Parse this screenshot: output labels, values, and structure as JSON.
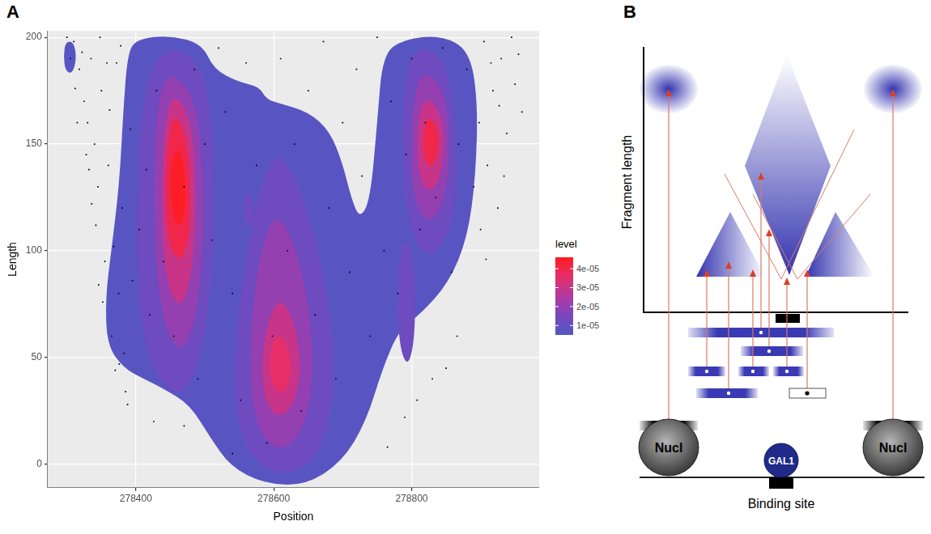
{
  "chart_data": {
    "type": "scatter",
    "panel": "A",
    "x_label": "Position",
    "y_label": "Length",
    "xlim": [
      278272,
      278985
    ],
    "xticks": [
      278400,
      278600,
      278800
    ],
    "ylim": [
      -11,
      203
    ],
    "yticks": [
      0,
      50,
      100,
      150,
      200
    ],
    "grid": true,
    "legend": "right",
    "series": [
      {
        "color": "#000000",
        "marker": "point",
        "x": [
          278310,
          278318,
          278325,
          278330,
          278335,
          278340,
          278345,
          278350,
          278342,
          278355,
          278360,
          278365,
          278370,
          278372,
          278380,
          278385,
          278375,
          278328,
          278336,
          278348,
          278352,
          278362,
          278368,
          278378,
          278383,
          278392,
          278395,
          278405,
          278415,
          278420,
          278430,
          278440,
          278455,
          278470,
          278485,
          278490,
          278500,
          278510,
          278520,
          278530,
          278540,
          278552,
          278560,
          278575,
          278590,
          278598,
          278610,
          278620,
          278630,
          278640,
          278650,
          278660,
          278672,
          278680,
          278690,
          278700,
          278710,
          278720,
          278728,
          278740,
          278750,
          278760,
          278770,
          278780,
          278792,
          278800,
          278812,
          278820,
          278835,
          278845,
          278858,
          278868,
          278880,
          278890,
          278898,
          278905,
          278910,
          278918,
          278925,
          278930,
          278938,
          278945,
          278900,
          278908,
          278915,
          278927,
          278934,
          278950,
          278955,
          278960,
          278312,
          278322,
          278332,
          278346,
          278358,
          278376,
          278388,
          278426,
          278470,
          278540,
          278300,
          278305,
          278315,
          278866,
          278850,
          278830,
          278808,
          278790,
          278765
        ],
        "values": [
          198,
          185,
          170,
          160,
          190,
          150,
          130,
          175,
          112,
          95,
          140,
          60,
          44,
          188,
          120,
          34,
          80,
          145,
          122,
          200,
          76,
          166,
          102,
          196,
          52,
          157,
          86,
          110,
          138,
          70,
          175,
          95,
          60,
          130,
          185,
          40,
          150,
          105,
          195,
          165,
          80,
          30,
          188,
          140,
          10,
          60,
          190,
          100,
          150,
          25,
          175,
          70,
          198,
          120,
          40,
          160,
          90,
          185,
          135,
          60,
          200,
          100,
          170,
          80,
          145,
          190,
          110,
          160,
          125,
          195,
          90,
          150,
          185,
          130,
          160,
          198,
          140,
          175,
          120,
          190,
          155,
          200,
          110,
          96,
          188,
          168,
          135,
          178,
          192,
          165,
          176,
          193,
          138,
          84,
          188,
          47,
          28,
          20,
          18,
          5,
          200,
          190,
          160,
          60,
          45,
          40,
          30,
          22,
          8
        ]
      }
    ],
    "density": {
      "contours": [
        {
          "level": 6e-06,
          "x": [
            278400,
            278448,
            278496,
            278513,
            278549,
            278579,
            278589,
            278609,
            278651,
            278681,
            278699,
            278713,
            278725,
            278740,
            278750,
            278758,
            278788,
            278842,
            278884,
            278896,
            278893,
            278881,
            278854,
            278812,
            278782,
            278758,
            278734,
            278699,
            278645,
            278585,
            278537,
            278507,
            278478,
            278442,
            278412,
            278382,
            278358,
            278356,
            278364,
            278376,
            278382,
            278388
          ],
          "y": [
            199,
            201,
            197,
            185,
            179,
            177,
            171,
            169,
            165,
            156,
            142,
            124,
            115,
            124,
            160,
            192,
            199,
            201,
            194,
            170,
            135,
            106,
            85,
            70,
            63,
            45,
            20,
            1,
            -10,
            -9,
            -1,
            13,
            28,
            35,
            40,
            45,
            56,
            78,
            99,
            131,
            167,
            192
          ]
        },
        {
          "level": 6e-06,
          "x": [
            278298,
            278310,
            278314,
            278308,
            278298,
            278295
          ],
          "y": [
            198,
            198,
            190,
            183,
            184,
            191
          ]
        },
        {
          "level": 1.2e-05,
          "x": [
            278560,
            278572,
            278572,
            278562,
            278555
          ],
          "y": [
            128,
            124,
            114,
            110,
            118
          ]
        },
        {
          "level": 1.2e-05,
          "x": [
            278440,
            278495,
            278515,
            278512,
            278490,
            278450,
            278405,
            278400,
            278410
          ],
          "y": [
            196,
            190,
            150,
            90,
            40,
            30,
            60,
            120,
            175
          ]
        },
        {
          "level": 2e-05,
          "x": [
            278450,
            278490,
            278500,
            278490,
            278465,
            278435,
            278425,
            278430
          ],
          "y": [
            185,
            170,
            120,
            70,
            50,
            70,
            120,
            170
          ]
        },
        {
          "level": 3e-05,
          "x": [
            278455,
            278482,
            278488,
            278480,
            278462,
            278442,
            278436,
            278442
          ],
          "y": [
            175,
            160,
            120,
            85,
            72,
            88,
            125,
            160
          ]
        },
        {
          "level": 4e-05,
          "x": [
            278458,
            278476,
            278480,
            278474,
            278460,
            278446,
            278443,
            278447
          ],
          "y": [
            165,
            150,
            120,
            100,
            95,
            105,
            130,
            155
          ]
        },
        {
          "level": 4.5e-05,
          "x": [
            278460,
            278472,
            278472,
            278462,
            278452,
            278450
          ],
          "y": [
            150,
            138,
            118,
            110,
            118,
            138
          ]
        },
        {
          "level": 1.2e-05,
          "x": [
            278600,
            278640,
            278680,
            278690,
            278660,
            278600,
            278550,
            278540,
            278565
          ],
          "y": [
            150,
            130,
            80,
            30,
            0,
            -6,
            10,
            50,
            110
          ]
        },
        {
          "level": 2e-05,
          "x": [
            278605,
            278640,
            278660,
            278645,
            278605,
            278570,
            278565,
            278580
          ],
          "y": [
            120,
            95,
            50,
            15,
            5,
            20,
            60,
            100
          ]
        },
        {
          "level": 3e-05,
          "x": [
            278608,
            278632,
            278640,
            278625,
            278600,
            278583,
            278585
          ],
          "y": [
            80,
            65,
            42,
            25,
            22,
            35,
            60
          ]
        },
        {
          "level": 3.6e-05,
          "x": [
            278608,
            278624,
            278625,
            278608,
            278594,
            278595
          ],
          "y": [
            62,
            52,
            38,
            32,
            40,
            55
          ]
        },
        {
          "level": 1.2e-05,
          "x": [
            278790,
            278805,
            278805,
            278795,
            278782,
            278778
          ],
          "y": [
            110,
            90,
            60,
            45,
            55,
            85
          ]
        },
        {
          "level": 1.2e-05,
          "x": [
            278810,
            278850,
            278868,
            278860,
            278825,
            278795,
            278785,
            278792
          ],
          "y": [
            196,
            190,
            150,
            110,
            95,
            110,
            150,
            185
          ]
        },
        {
          "level": 2e-05,
          "x": [
            278818,
            278848,
            278856,
            278848,
            278822,
            278802,
            278798,
            278805
          ],
          "y": [
            185,
            175,
            150,
            122,
            112,
            125,
            152,
            175
          ]
        },
        {
          "level": 3e-05,
          "x": [
            278822,
            278842,
            278848,
            278840,
            278822,
            278810,
            278808,
            278812
          ],
          "y": [
            172,
            165,
            150,
            132,
            127,
            137,
            152,
            166
          ]
        },
        {
          "level": 4e-05,
          "x": [
            278825,
            278838,
            278840,
            278832,
            278822,
            278816,
            278818
          ],
          "y": [
            163,
            158,
            148,
            140,
            140,
            148,
            158
          ]
        }
      ],
      "color_bar": {
        "title": "level",
        "range": [
          5e-06,
          4.6e-05
        ],
        "ticks": [
          {
            "value": 1e-05,
            "label": "1e-05"
          },
          {
            "value": 2e-05,
            "label": "2e-05"
          },
          {
            "value": 3e-05,
            "label": "3e-05"
          },
          {
            "value": 4e-05,
            "label": "4e-05"
          }
        ],
        "colors": [
          "#5457c2",
          "#7a46bd",
          "#b23aa0",
          "#e52f6a",
          "#ff1c1c"
        ]
      }
    }
  },
  "diagram": {
    "letter": "B",
    "y_label": "Fragment length",
    "nodes": [
      {
        "label": "Nucl"
      },
      {
        "label": "GAL1"
      },
      {
        "label": "Nucl"
      }
    ],
    "site": "Binding site"
  }
}
